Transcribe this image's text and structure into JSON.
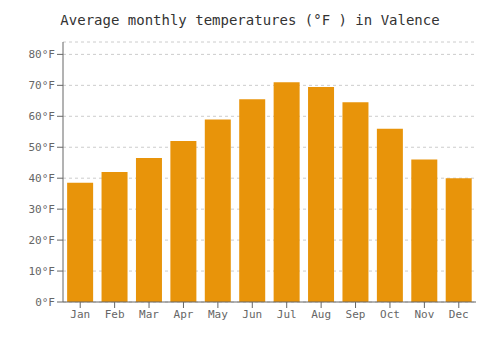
{
  "chart_data": {
    "type": "bar",
    "title": "Average monthly temperatures (°F ) in Valence",
    "categories": [
      "Jan",
      "Feb",
      "Mar",
      "Apr",
      "May",
      "Jun",
      "Jul",
      "Aug",
      "Sep",
      "Oct",
      "Nov",
      "Dec"
    ],
    "values": [
      38.5,
      42.0,
      46.5,
      52.0,
      59.0,
      65.5,
      71.0,
      69.5,
      64.5,
      56.0,
      46.0,
      40.0
    ],
    "color": "#E8940A",
    "ylim": [
      0,
      84
    ],
    "yticks": [
      {
        "value": 0,
        "label": "0°F"
      },
      {
        "value": 10,
        "label": "10°F"
      },
      {
        "value": 20,
        "label": "20°F"
      },
      {
        "value": 30,
        "label": "30°F"
      },
      {
        "value": 40,
        "label": "40°F"
      },
      {
        "value": 50,
        "label": "50°F"
      },
      {
        "value": 60,
        "label": "60°F"
      },
      {
        "value": 70,
        "label": "70°F"
      },
      {
        "value": 80,
        "label": "80°F"
      }
    ],
    "grid": true
  }
}
